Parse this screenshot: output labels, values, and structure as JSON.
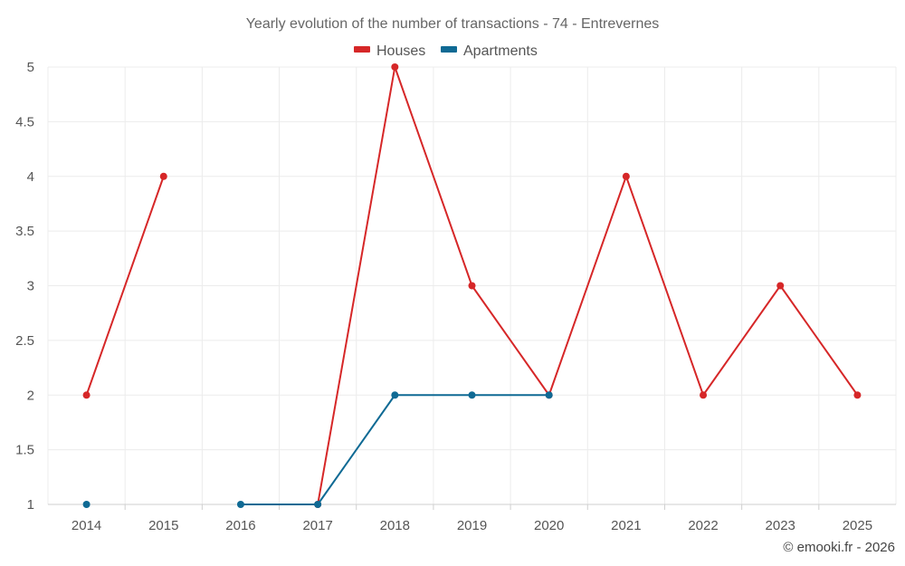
{
  "chart_data": {
    "type": "line",
    "title": "Yearly evolution of the number of transactions - 74 - Entrevernes",
    "x": [
      2014,
      2015,
      2016,
      2017,
      2018,
      2019,
      2020,
      2021,
      2022,
      2023,
      2025
    ],
    "ylim": [
      1,
      5
    ],
    "yticks": [
      1,
      1.5,
      2,
      2.5,
      3,
      3.5,
      4,
      4.5,
      5
    ],
    "grid": true,
    "legend_position": "top-center",
    "series": [
      {
        "name": "Houses",
        "color": "#d62728",
        "values": [
          2,
          4,
          null,
          1,
          5,
          3,
          2,
          4,
          2,
          3,
          2
        ]
      },
      {
        "name": "Apartments",
        "color": "#0f6a94",
        "values": [
          1,
          null,
          1,
          1,
          2,
          2,
          2,
          null,
          null,
          null,
          null
        ]
      }
    ]
  },
  "credit": "© emooki.fr - 2026"
}
